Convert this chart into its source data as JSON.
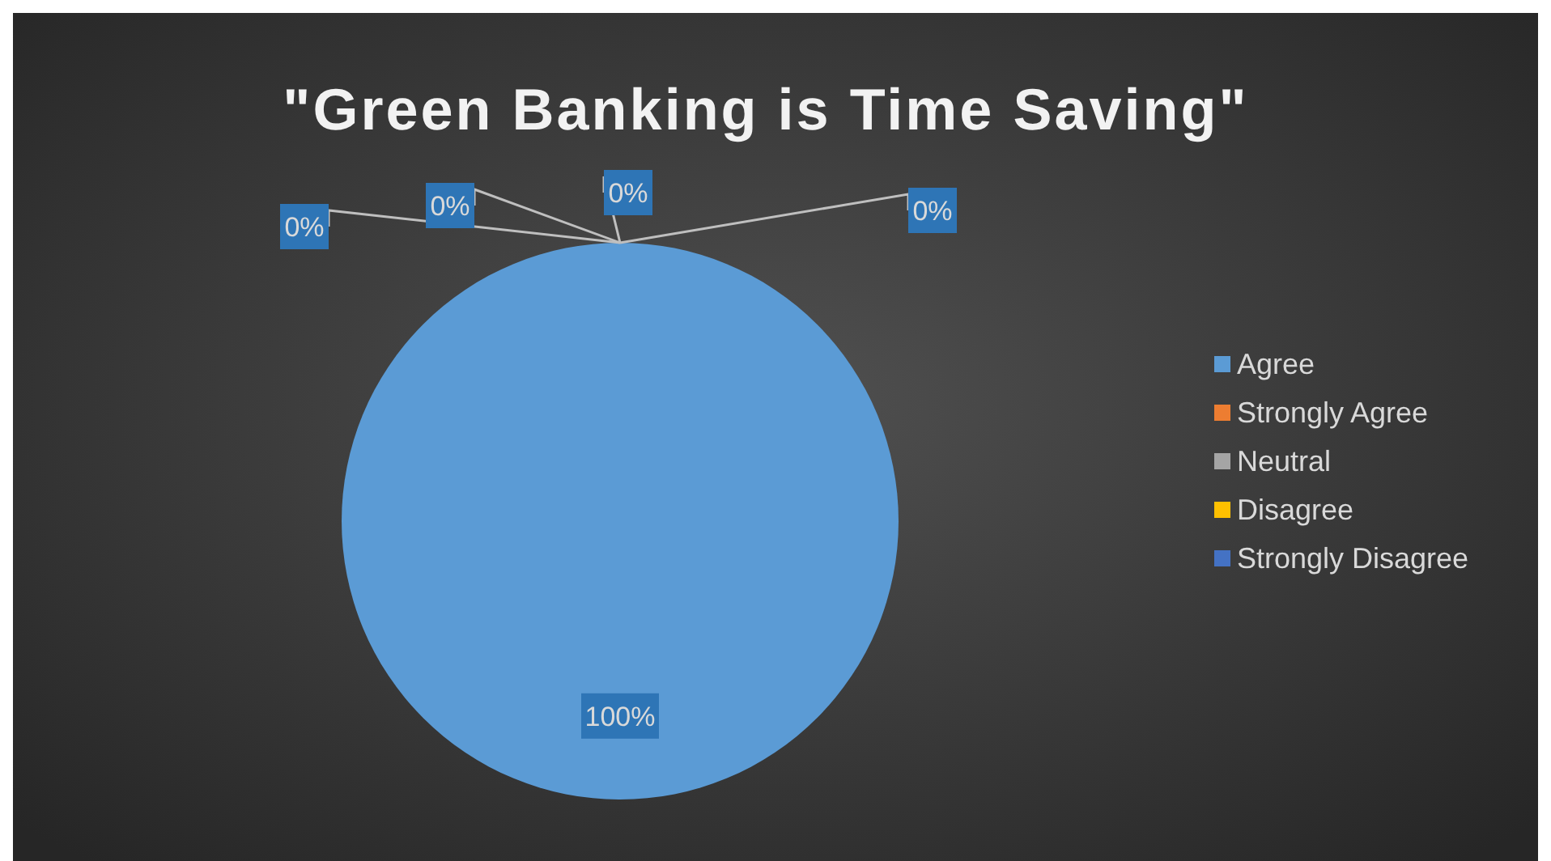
{
  "chart_data": {
    "type": "pie",
    "title": "\"Green Banking is Time Saving\"",
    "categories": [
      "Agree",
      "Strongly Agree",
      "Neutral",
      "Disagree",
      "Strongly Disagree"
    ],
    "values": [
      100,
      0,
      0,
      0,
      0
    ],
    "colors": [
      "#5b9bd5",
      "#ed7d31",
      "#a5a5a5",
      "#ffc000",
      "#4472c4"
    ],
    "value_labels": [
      "100%",
      "0%",
      "0%",
      "0%",
      "0%"
    ],
    "legend": "right"
  }
}
